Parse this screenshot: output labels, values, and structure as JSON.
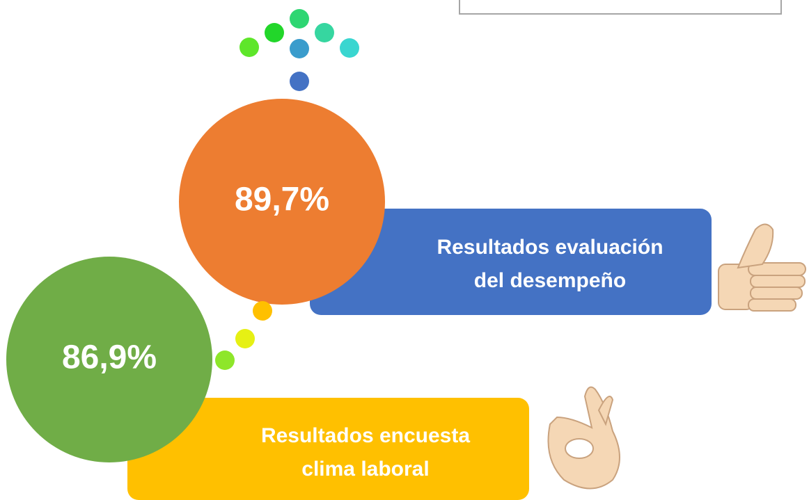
{
  "items": [
    {
      "value": "89,7%",
      "caption": [
        "Resultados evaluación",
        "del desempeño"
      ]
    },
    {
      "value": "86,9%",
      "caption": [
        "Resultados encuesta",
        "clima laboral"
      ]
    }
  ]
}
